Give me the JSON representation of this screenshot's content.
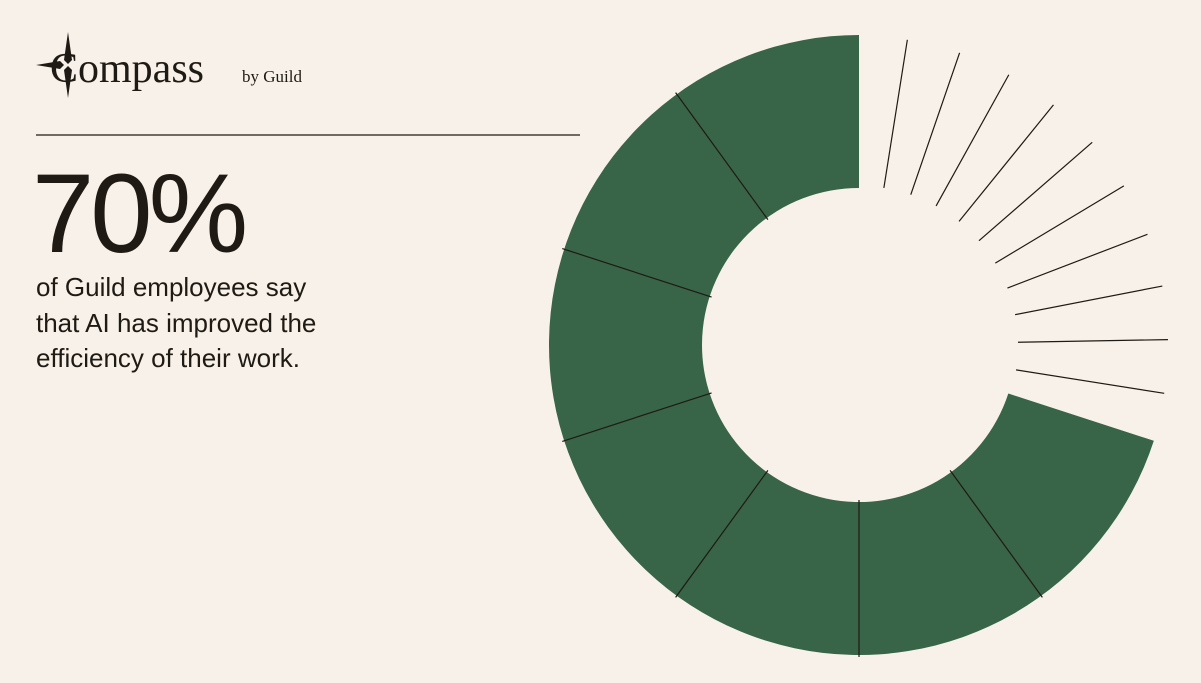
{
  "header": {
    "brand": "Compass",
    "by": "by Guild"
  },
  "chart_data": {
    "type": "donut",
    "values": [
      70
    ],
    "value_labels": [
      "70%"
    ],
    "color": "#386447",
    "description": [
      "of Guild employees say",
      "that AI has improved the",
      "efficiency of their work."
    ]
  }
}
